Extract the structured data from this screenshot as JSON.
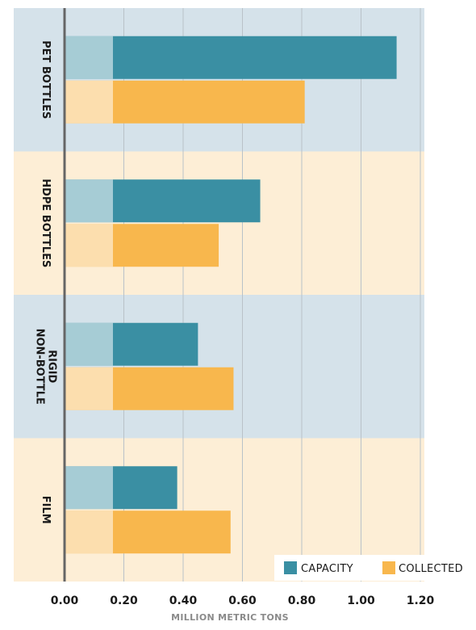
{
  "chart_data": {
    "type": "bar",
    "orientation": "horizontal",
    "categories": [
      "PET BOTTLES",
      "HDPE BOTTLES",
      "NON-BOTTLE RIGID",
      "FILM"
    ],
    "category_label_lines": [
      [
        "PET BOTTLES"
      ],
      [
        "HDPE BOTTLES"
      ],
      [
        "NON-BOTTLE",
        "RIGID"
      ],
      [
        "FILM"
      ]
    ],
    "series": [
      {
        "name": "CAPACITY",
        "values": [
          1.12,
          0.66,
          0.45,
          0.38
        ],
        "color": "#3a8fa3"
      },
      {
        "name": "COLLECTED",
        "values": [
          0.81,
          0.52,
          0.57,
          0.56
        ],
        "color": "#f8b74d"
      }
    ],
    "xlabel": "MILLION METRIC TONS",
    "xlim": [
      0,
      1.2
    ],
    "xticks": [
      "0.00",
      "0.20",
      "0.40",
      "0.60",
      "0.80",
      "1.00",
      "1.20"
    ],
    "grid": true,
    "legend_position": "bottom-right",
    "band_colors": [
      "#d5e2ea",
      "#fdeed6"
    ]
  }
}
